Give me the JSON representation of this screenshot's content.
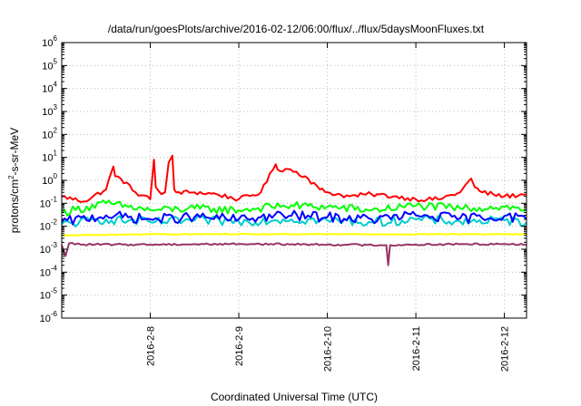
{
  "chart_data": {
    "type": "line",
    "title": "/data/run/goesPlots/archive/2016-02-12/06:00/flux/../flux/5daysMoonFluxes.txt",
    "xlabel": "Coordinated Universal Time (UTC)",
    "ylabel": "protons/cm2-s-sr-MeV",
    "ylabel_base": "protons/cm",
    "ylabel_sup": "2",
    "ylabel_rest": "-s-sr-MeV",
    "yscale": "log",
    "ylim": [
      1e-06,
      1000000.0
    ],
    "y_ticks": [
      {
        "base": "10",
        "exp": "-6"
      },
      {
        "base": "10",
        "exp": "-5"
      },
      {
        "base": "10",
        "exp": "-4"
      },
      {
        "base": "10",
        "exp": "-3"
      },
      {
        "base": "10",
        "exp": "-2"
      },
      {
        "base": "10",
        "exp": "-1"
      },
      {
        "base": "10",
        "exp": "0"
      },
      {
        "base": "10",
        "exp": "1"
      },
      {
        "base": "10",
        "exp": "2"
      },
      {
        "base": "10",
        "exp": "3"
      },
      {
        "base": "10",
        "exp": "4"
      },
      {
        "base": "10",
        "exp": "5"
      },
      {
        "base": "10",
        "exp": "6"
      }
    ],
    "xlim": [
      "2016-02-07T00:00",
      "2016-02-12T06:00"
    ],
    "x_ticks": [
      "2016-2-8",
      "2016-2-9",
      "2016-2-10",
      "2016-2-11",
      "2016-2-12"
    ],
    "grid": true,
    "series": [
      {
        "color": "#ff0000",
        "x": [
          "2016-02-07T00:00",
          "2016-02-07T06:00",
          "2016-02-07T12:00",
          "2016-02-07T14:00",
          "2016-02-07T14:30",
          "2016-02-07T16:00",
          "2016-02-07T20:00",
          "2016-02-08T00:00",
          "2016-02-08T01:00",
          "2016-02-08T01:30",
          "2016-02-08T03:00",
          "2016-02-08T04:00",
          "2016-02-08T05:00",
          "2016-02-08T06:00",
          "2016-02-08T06:30",
          "2016-02-08T07:00",
          "2016-02-08T12:00",
          "2016-02-08T18:00",
          "2016-02-09T00:00",
          "2016-02-09T06:00",
          "2016-02-09T10:00",
          "2016-02-09T10:30",
          "2016-02-09T14:00",
          "2016-02-09T18:00",
          "2016-02-09T22:00",
          "2016-02-10T00:00",
          "2016-02-10T06:00",
          "2016-02-10T12:00",
          "2016-02-10T18:00",
          "2016-02-11T00:00",
          "2016-02-11T06:00",
          "2016-02-11T12:00",
          "2016-02-11T15:00",
          "2016-02-11T16:00",
          "2016-02-11T18:00",
          "2016-02-12T00:00",
          "2016-02-12T06:00"
        ],
        "y": [
          0.2,
          0.12,
          0.4,
          4,
          1.5,
          1.2,
          0.3,
          0.15,
          8,
          0.5,
          0.25,
          0.3,
          6,
          12,
          0.4,
          0.3,
          0.3,
          0.25,
          0.15,
          0.3,
          5,
          3,
          3,
          1.5,
          0.4,
          0.3,
          0.2,
          0.25,
          0.2,
          0.15,
          0.15,
          0.3,
          1.2,
          0.5,
          0.3,
          0.2,
          0.25
        ]
      },
      {
        "color": "#00ff00",
        "x": [
          "2016-02-07T00:00",
          "2016-02-07T12:00",
          "2016-02-08T00:00",
          "2016-02-08T12:00",
          "2016-02-09T00:00",
          "2016-02-09T12:00",
          "2016-02-10T00:00",
          "2016-02-10T12:00",
          "2016-02-11T00:00",
          "2016-02-11T12:00",
          "2016-02-12T00:00",
          "2016-02-12T06:00"
        ],
        "y": [
          0.04,
          0.1,
          0.05,
          0.06,
          0.05,
          0.08,
          0.07,
          0.05,
          0.08,
          0.06,
          0.07,
          0.05
        ]
      },
      {
        "color": "#00cccc",
        "x": [
          "2016-02-07T00:00",
          "2016-02-07T12:00",
          "2016-02-08T00:00",
          "2016-02-08T12:00",
          "2016-02-09T00:00",
          "2016-02-09T12:00",
          "2016-02-10T00:00",
          "2016-02-10T12:00",
          "2016-02-11T00:00",
          "2016-02-11T12:00",
          "2016-02-12T00:00",
          "2016-02-12T06:00"
        ],
        "y": [
          0.012,
          0.02,
          0.015,
          0.018,
          0.016,
          0.02,
          0.018,
          0.015,
          0.02,
          0.016,
          0.018,
          0.015
        ]
      },
      {
        "color": "#0000ff",
        "x": [
          "2016-02-07T00:00",
          "2016-02-07T12:00",
          "2016-02-08T00:00",
          "2016-02-08T12:00",
          "2016-02-09T00:00",
          "2016-02-09T12:00",
          "2016-02-10T00:00",
          "2016-02-10T12:00",
          "2016-02-11T00:00",
          "2016-02-11T12:00",
          "2016-02-12T00:00",
          "2016-02-12T06:00"
        ],
        "y": [
          0.015,
          0.03,
          0.02,
          0.025,
          0.02,
          0.03,
          0.025,
          0.02,
          0.03,
          0.022,
          0.028,
          0.02
        ]
      },
      {
        "color": "#ffff00",
        "x": [
          "2016-02-07T00:00",
          "2016-02-08T00:00",
          "2016-02-09T00:00",
          "2016-02-10T00:00",
          "2016-02-11T00:00",
          "2016-02-12T00:00",
          "2016-02-12T06:00"
        ],
        "y": [
          0.004,
          0.0045,
          0.0045,
          0.0045,
          0.0045,
          0.0045,
          0.0045
        ]
      },
      {
        "color": "#993366",
        "x": [
          "2016-02-07T00:00",
          "2016-02-07T01:00",
          "2016-02-07T02:00",
          "2016-02-07T06:00",
          "2016-02-08T00:00",
          "2016-02-09T00:00",
          "2016-02-10T00:00",
          "2016-02-10T16:00",
          "2016-02-10T16:30",
          "2016-02-10T17:00",
          "2016-02-11T00:00",
          "2016-02-12T00:00",
          "2016-02-12T06:00"
        ],
        "y": [
          0.0015,
          0.0005,
          0.0018,
          0.0016,
          0.0016,
          0.0017,
          0.0016,
          0.0015,
          0.0002,
          0.0015,
          0.0016,
          0.0017,
          0.0016
        ]
      }
    ]
  }
}
